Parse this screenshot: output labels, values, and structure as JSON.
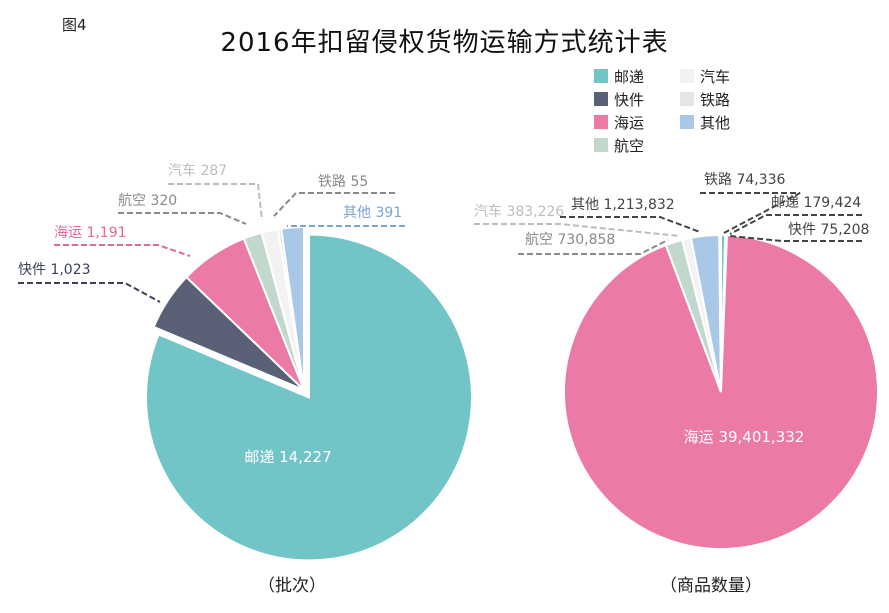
{
  "figure_label": "图4",
  "title": "2016年扣留侵权货物运输方式统计表",
  "legend": [
    {
      "name": "邮递",
      "color": "#72c5c7"
    },
    {
      "name": "汽车",
      "color": "#f2f2f2"
    },
    {
      "name": "快件",
      "color": "#5a6076"
    },
    {
      "name": "铁路",
      "color": "#e4e6e3"
    },
    {
      "name": "海运",
      "color": "#ec7aa7"
    },
    {
      "name": "其他",
      "color": "#a9c7e6"
    },
    {
      "name": "航空",
      "color": "#c2d8cd"
    }
  ],
  "chart_data": [
    {
      "type": "pie",
      "caption": "（批次）",
      "slices": [
        {
          "name": "邮递",
          "value": 14227,
          "label": "邮递 14,227",
          "color": "#72c5c7",
          "label_color": "#ffffff"
        },
        {
          "name": "快件",
          "value": 1023,
          "label": "快件  1,023",
          "color": "#5a6076",
          "label_color": "#3c4258"
        },
        {
          "name": "海运",
          "value": 1191,
          "label": "海运  1,191",
          "color": "#ec7aa7",
          "label_color": "#e2679a"
        },
        {
          "name": "航空",
          "value": 320,
          "label": "航空  320",
          "color": "#c2d8cd",
          "label_color": "#8a8a8a"
        },
        {
          "name": "汽车",
          "value": 287,
          "label": "汽车  287",
          "color": "#f2f2f2",
          "label_color": "#bdbdbd"
        },
        {
          "name": "铁路",
          "value": 55,
          "label": "铁路  55",
          "color": "#e4e6e3",
          "label_color": "#8a8a8a"
        },
        {
          "name": "其他",
          "value": 391,
          "label": "其他 391",
          "color": "#a9c7e6",
          "label_color": "#7aa3d2"
        }
      ]
    },
    {
      "type": "pie",
      "caption": "（商品数量）",
      "slices": [
        {
          "name": "邮递",
          "value": 179424,
          "label": "邮递 179,424",
          "color": "#72c5c7",
          "label_color": "#444444"
        },
        {
          "name": "快件",
          "value": 75208,
          "label": "快件 75,208",
          "color": "#5a6076",
          "label_color": "#444444"
        },
        {
          "name": "海运",
          "value": 39401332,
          "label": "海运 39,401,332",
          "color": "#ec7aa7",
          "label_color": "#ffffff"
        },
        {
          "name": "航空",
          "value": 730858,
          "label": "航空 730,858",
          "color": "#c2d8cd",
          "label_color": "#8a8a8a"
        },
        {
          "name": "汽车",
          "value": 383226,
          "label": "汽车 383,226",
          "color": "#f2f2f2",
          "label_color": "#bdbdbd"
        },
        {
          "name": "其他",
          "value": 1213832,
          "label": "其他 1,213,832",
          "color": "#a9c7e6",
          "label_color": "#444444"
        },
        {
          "name": "铁路",
          "value": 74336,
          "label": "铁路 74,336",
          "color": "#e4e6e3",
          "label_color": "#444444"
        }
      ]
    }
  ]
}
